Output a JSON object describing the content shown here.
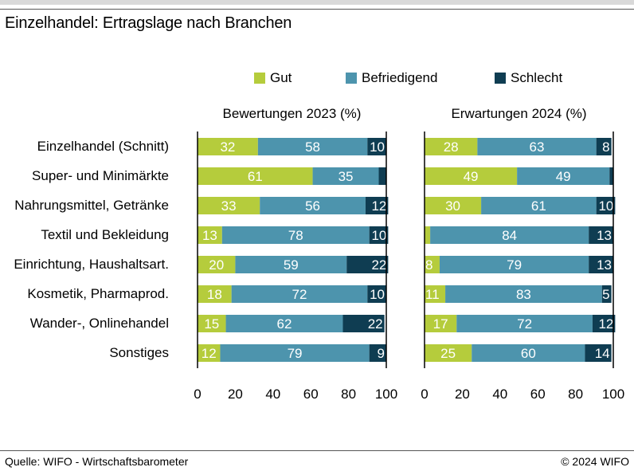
{
  "title": "Einzelhandel: Ertragslage nach Branchen",
  "source": "Quelle: WIFO - Wirtschaftsbarometer",
  "copyright": "© 2024 WIFO",
  "colors": {
    "gut": "#b5cc3c",
    "befriedigend": "#4d94ad",
    "schlecht": "#0f3d52"
  },
  "legend": [
    "Gut",
    "Befriedigend",
    "Schlecht"
  ],
  "chart_data": {
    "type": "bar",
    "orientation": "horizontal",
    "stacked": true,
    "categories": [
      "Einzelhandel (Schnitt)",
      "Super- und Minimärkte",
      "Nahrungsmittel, Getränke",
      "Textil und Bekleidung",
      "Einrichtung, Haushaltsart.",
      "Kosmetik, Pharmaprod.",
      "Wander-, Onlinehandel",
      "Sonstiges"
    ],
    "panels": [
      {
        "title": "Bewertungen 2023 (%)",
        "series": [
          {
            "name": "Gut",
            "values": [
              32,
              61,
              33,
              13,
              20,
              18,
              15,
              12
            ]
          },
          {
            "name": "Befriedigend",
            "values": [
              58,
              35,
              56,
              78,
              59,
              72,
              62,
              79
            ]
          },
          {
            "name": "Schlecht",
            "values": [
              10,
              4,
              12,
              10,
              22,
              10,
              22,
              9
            ]
          }
        ],
        "labels": [
          [
            "32",
            "61",
            "33",
            "13",
            "20",
            "18",
            "15",
            "12"
          ],
          [
            "58",
            "35",
            "56",
            "78",
            "59",
            "72",
            "62",
            "79"
          ],
          [
            "10",
            "",
            "12",
            "10",
            "22",
            "10",
            "22",
            "9"
          ]
        ]
      },
      {
        "title": "Erwartungen 2024 (%)",
        "series": [
          {
            "name": "Gut",
            "values": [
              28,
              49,
              30,
              3,
              8,
              11,
              17,
              25
            ]
          },
          {
            "name": "Befriedigend",
            "values": [
              63,
              49,
              61,
              84,
              79,
              83,
              72,
              60
            ]
          },
          {
            "name": "Schlecht",
            "values": [
              8,
              2,
              10,
              13,
              13,
              5,
              12,
              14
            ]
          }
        ],
        "labels": [
          [
            "28",
            "49",
            "30",
            "",
            "8",
            "11",
            "17",
            "25"
          ],
          [
            "63",
            "49",
            "61",
            "84",
            "79",
            "83",
            "72",
            "60"
          ],
          [
            "8",
            "",
            "10",
            "13",
            "13",
            "5",
            "12",
            "14"
          ]
        ]
      }
    ],
    "xlim": [
      0,
      100
    ],
    "xticks": [
      "0",
      "20",
      "40",
      "60",
      "80",
      "100"
    ],
    "legend_position": "top"
  }
}
